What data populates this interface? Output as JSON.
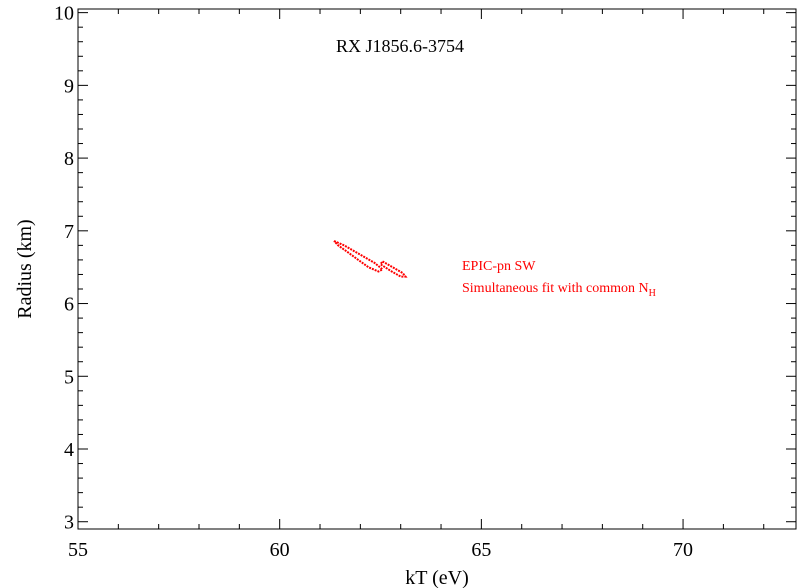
{
  "chart_data": {
    "type": "scatter",
    "title": "RX J1856.6-3754",
    "xlabel": "kT (eV)",
    "ylabel": "Radius (km)",
    "xlim": [
      55,
      72.8
    ],
    "ylim": [
      2.9,
      10.05
    ],
    "x_ticks": [
      "55",
      "60",
      "65",
      "70"
    ],
    "y_ticks": [
      "3",
      "4",
      "5",
      "6",
      "7",
      "8",
      "9",
      "10"
    ],
    "grid": false,
    "annotations": [
      {
        "text": "EPIC-pn SW",
        "color": "#ff0000"
      },
      {
        "text": "Simultaneous fit with common N",
        "subscript": "H",
        "color": "#ff0000"
      }
    ],
    "series": [
      {
        "color": "#ff0000",
        "contours": [
          [
            [
              61.35,
              6.86
            ],
            [
              61.6,
              6.8
            ],
            [
              61.85,
              6.72
            ],
            [
              62.1,
              6.64
            ],
            [
              62.35,
              6.56
            ],
            [
              62.55,
              6.47
            ],
            [
              62.45,
              6.44
            ],
            [
              62.2,
              6.5
            ],
            [
              61.95,
              6.6
            ],
            [
              61.7,
              6.7
            ],
            [
              61.45,
              6.8
            ],
            [
              61.35,
              6.86
            ]
          ],
          [
            [
              62.55,
              6.58
            ],
            [
              62.8,
              6.5
            ],
            [
              63.05,
              6.42
            ],
            [
              63.12,
              6.37
            ],
            [
              63.0,
              6.37
            ],
            [
              62.75,
              6.45
            ],
            [
              62.5,
              6.54
            ],
            [
              62.55,
              6.58
            ]
          ]
        ]
      }
    ]
  }
}
